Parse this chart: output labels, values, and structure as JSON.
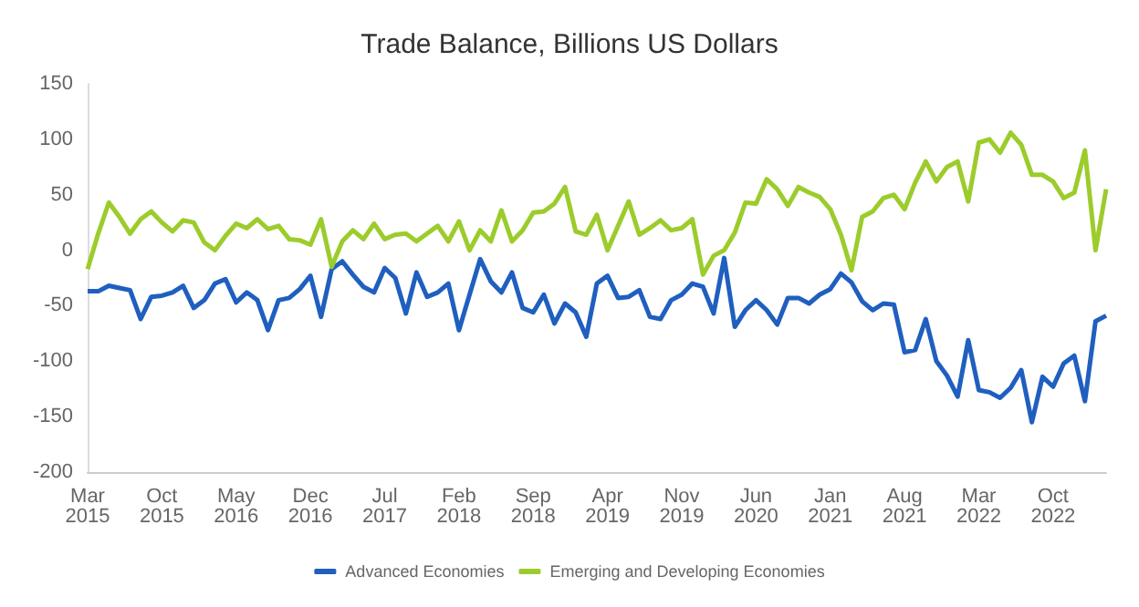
{
  "chart_data": {
    "type": "line",
    "title": "Trade Balance, Billions US Dollars",
    "categories": [
      "Mar 2015",
      null,
      null,
      null,
      null,
      null,
      null,
      "Oct 2015",
      null,
      null,
      null,
      null,
      null,
      null,
      "May 2016",
      null,
      null,
      null,
      null,
      null,
      null,
      "Dec 2016",
      null,
      null,
      null,
      null,
      null,
      null,
      "Jul 2017",
      null,
      null,
      null,
      null,
      null,
      null,
      "Feb 2018",
      null,
      null,
      null,
      null,
      null,
      null,
      "Sep 2018",
      null,
      null,
      null,
      null,
      null,
      null,
      "Apr 2019",
      null,
      null,
      null,
      null,
      null,
      null,
      "Nov 2019",
      null,
      null,
      null,
      null,
      null,
      null,
      "Jun 2020",
      null,
      null,
      null,
      null,
      null,
      null,
      "Jan 2021",
      null,
      null,
      null,
      null,
      null,
      null,
      "Aug 2021",
      null,
      null,
      null,
      null,
      null,
      null,
      "Mar 2022",
      null,
      null,
      null,
      null,
      null,
      null,
      "Oct 2022",
      null,
      null,
      null,
      null,
      null
    ],
    "series": [
      {
        "name": "Advanced Economies",
        "color": "#1f5fbf",
        "values": [
          -37,
          -37,
          -32,
          -34,
          -36,
          -62,
          -42,
          -41,
          -38,
          -32,
          -52,
          -45,
          -30,
          -26,
          -47,
          -38,
          -45,
          -72,
          -45,
          -43,
          -35,
          -23,
          -60,
          -17,
          -10,
          -22,
          -33,
          -38,
          -16,
          -25,
          -57,
          -20,
          -42,
          -38,
          -30,
          -72,
          -40,
          -8,
          -28,
          -38,
          -20,
          -52,
          -56,
          -40,
          -66,
          -48,
          -56,
          -78,
          -30,
          -23,
          -43,
          -42,
          -36,
          -60,
          -62,
          -45,
          -40,
          -30,
          -33,
          -57,
          -7,
          -69,
          -54,
          -45,
          -54,
          -67,
          -43,
          -43,
          -48,
          -40,
          -35,
          -21,
          -29,
          -46,
          -54,
          -48,
          -49,
          -92,
          -90,
          -62,
          -100,
          -113,
          -132,
          -81,
          -126,
          -128,
          -133,
          -124,
          -108,
          -155,
          -114,
          -123,
          -102,
          -95,
          -136,
          -64,
          -59
        ]
      },
      {
        "name": "Emerging and Developing Economies",
        "color": "#9ccc2c",
        "values": [
          -17,
          15,
          43,
          30,
          15,
          28,
          35,
          25,
          17,
          27,
          25,
          7,
          0,
          13,
          24,
          20,
          28,
          19,
          22,
          10,
          9,
          5,
          28,
          -15,
          8,
          18,
          10,
          24,
          10,
          14,
          15,
          8,
          15,
          22,
          8,
          26,
          0,
          18,
          8,
          36,
          8,
          18,
          34,
          35,
          42,
          57,
          17,
          14,
          32,
          0,
          22,
          44,
          14,
          20,
          27,
          18,
          20,
          28,
          -22,
          -5,
          0,
          16,
          43,
          42,
          64,
          55,
          40,
          57,
          52,
          48,
          37,
          14,
          -18,
          30,
          35,
          47,
          50,
          37,
          61,
          80,
          62,
          75,
          80,
          44,
          97,
          100,
          88,
          106,
          95,
          68,
          68,
          62,
          47,
          52,
          90,
          0,
          55
        ]
      }
    ],
    "ylim": [
      -200,
      150
    ],
    "yticks": [
      -200,
      -150,
      -100,
      -50,
      0,
      50,
      100,
      150
    ],
    "grid": false,
    "legend": "bottom",
    "marker": "none",
    "line_style": "solid"
  }
}
